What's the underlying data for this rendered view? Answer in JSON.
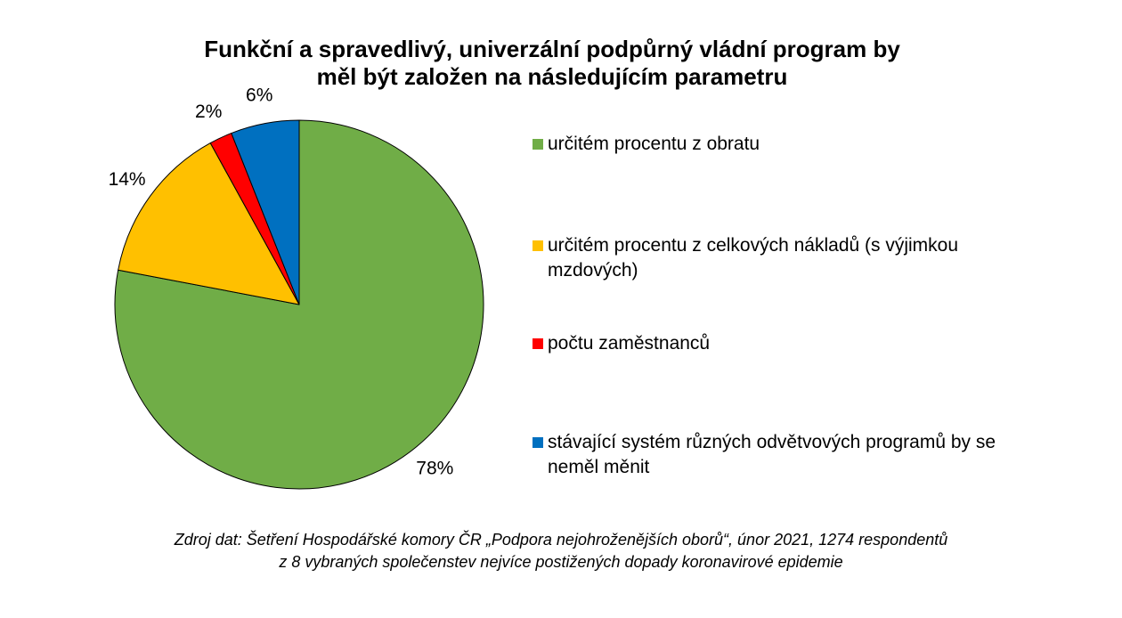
{
  "chart_data": {
    "type": "pie",
    "title_lines": [
      "Funkční a spravedlivý, univerzální podpůrný vládní program by",
      "měl být založen na následujícím parametru"
    ],
    "slices": [
      {
        "label": "určitém procentu z obratu",
        "value": 78,
        "value_label": "78%",
        "color": "#70ad47"
      },
      {
        "label": "určitém procentu z celkových nákladů (s výjimkou mzdových)",
        "value": 14,
        "value_label": "14%",
        "color": "#ffc000"
      },
      {
        "label": "počtu zaměstnanců",
        "value": 2,
        "value_label": "2%",
        "color": "#ff0000"
      },
      {
        "label": "stávající systém různých odvětvových programů by se neměl měnit",
        "value": 6,
        "value_label": "6%",
        "color": "#0070c0"
      }
    ],
    "legend_position": "right"
  },
  "source_lines": [
    "Zdroj dat: Šetření Hospodářské komory ČR „Podpora nejohroženějších oborů“, únor 2021, 1274 respondentů",
    "z 8 vybraných společenstev nejvíce postižených dopady koronavirové epidemie"
  ]
}
